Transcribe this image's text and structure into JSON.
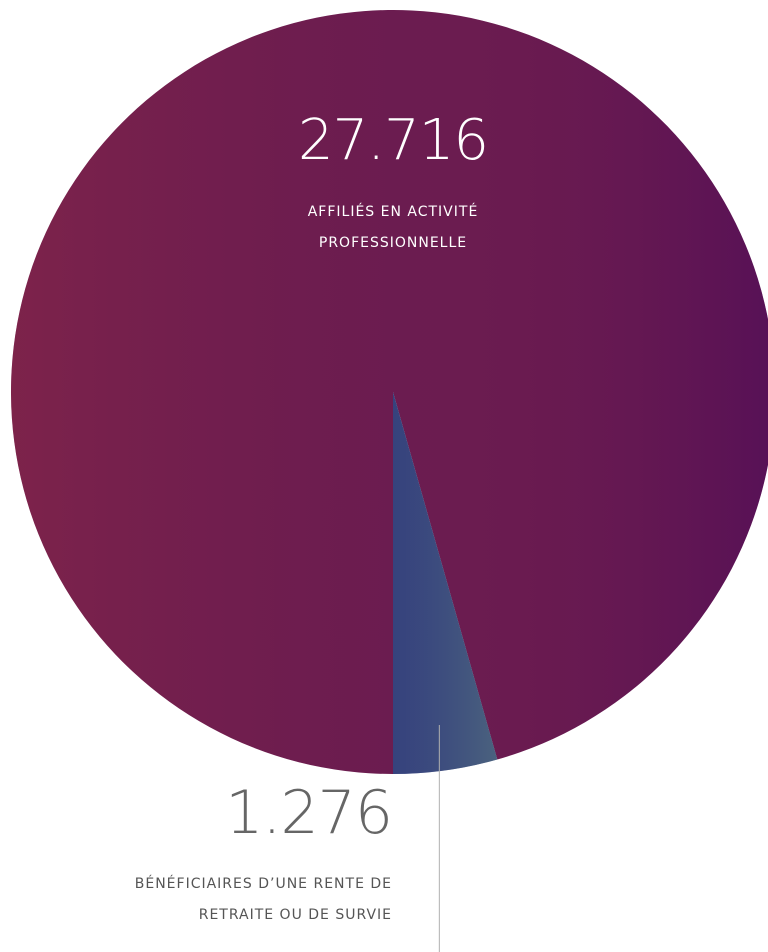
{
  "chart_data": {
    "type": "pie",
    "categories": [
      "AFFILIÉS EN ACTIVITÉ PROFESSIONNELLE",
      "BÉNÉFICIAIRES D’UNE RENTE DE RETRAITE OU DE SURVIE"
    ],
    "values": [
      27716,
      1276
    ],
    "value_labels": [
      "27.716",
      "1.276"
    ],
    "colors": [
      "#6a1c50",
      "#3b4a7c"
    ]
  }
}
